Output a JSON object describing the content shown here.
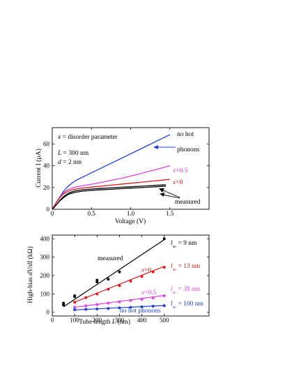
{
  "chart_data": [
    {
      "type": "line",
      "xlabel": "Voltage (V)",
      "ylabel": "Current I (µA)",
      "xlim": [
        0,
        2.0
      ],
      "ylim": [
        0,
        75
      ],
      "xticks": [
        0,
        0.5,
        1.0,
        1.5
      ],
      "xtick_labels": [
        "0",
        "0.5",
        "1.0",
        "1.5"
      ],
      "yticks": [
        0,
        20,
        40,
        60
      ],
      "ytick_labels": [
        "0",
        "20",
        "40",
        "60"
      ],
      "annotations": {
        "param_prefix": "x",
        "param_text": " = disorder parameter",
        "L_text": "L",
        "L_value": " = 300 nm",
        "d_text": "d",
        "d_value": " = 2 nm",
        "no_hot_line1": "no hot",
        "no_hot_line2": "phonons",
        "x05_var": "x",
        "x05_val": "=0.5",
        "x0_var": "x",
        "x0_val": "=0",
        "measured": "measured"
      },
      "colors": {
        "no_hot": "#1a3fd9",
        "x05": "#e040e6",
        "x0": "#e01818",
        "measured": "#000000"
      },
      "series": [
        {
          "key": "no_hot",
          "x": [
            0,
            0.05,
            0.1,
            0.15,
            0.2,
            0.25,
            0.3,
            0.4,
            0.5,
            0.6,
            0.7,
            0.8,
            0.9,
            1.0,
            1.1,
            1.2,
            1.3,
            1.4,
            1.5
          ],
          "y": [
            0,
            6,
            12,
            17,
            21,
            24,
            26.5,
            30,
            33.5,
            37,
            40.5,
            44,
            47.5,
            51,
            54.5,
            58,
            61.5,
            65,
            68.5
          ]
        },
        {
          "key": "x05",
          "x": [
            0,
            0.05,
            0.1,
            0.15,
            0.2,
            0.25,
            0.3,
            0.4,
            0.5,
            0.6,
            0.7,
            0.8,
            0.9,
            1.0,
            1.1,
            1.2,
            1.3,
            1.4,
            1.5
          ],
          "y": [
            0,
            6,
            11.5,
            15.5,
            18,
            19.5,
            20.5,
            21.8,
            23,
            24.3,
            25.8,
            27.3,
            28.8,
            30.5,
            32.3,
            34.2,
            36.1,
            38,
            40
          ]
        },
        {
          "key": "x0",
          "x": [
            0,
            0.05,
            0.1,
            0.15,
            0.2,
            0.25,
            0.3,
            0.4,
            0.5,
            0.6,
            0.7,
            0.8,
            0.9,
            1.0,
            1.1,
            1.2,
            1.3,
            1.4,
            1.5
          ],
          "y": [
            0,
            6,
            11,
            14.5,
            16.5,
            17.8,
            18.6,
            19.6,
            20.4,
            21.1,
            21.8,
            22.5,
            23.2,
            23.9,
            24.6,
            25.3,
            26,
            26.7,
            27.5
          ]
        },
        {
          "key": "measured_a",
          "x": [
            0,
            0.05,
            0.1,
            0.15,
            0.2,
            0.25,
            0.3,
            0.4,
            0.5,
            0.6,
            0.7,
            0.8,
            0.9,
            1.0,
            1.1,
            1.2,
            1.3,
            1.4,
            1.45
          ],
          "y": [
            0,
            4,
            8.5,
            12,
            14.5,
            16,
            17,
            18,
            18.6,
            19.1,
            19.5,
            19.9,
            20.3,
            20.7,
            21.1,
            21.5,
            21.9,
            22.3,
            22.5
          ]
        },
        {
          "key": "measured_b",
          "x": [
            0,
            0.05,
            0.1,
            0.15,
            0.2,
            0.25,
            0.3,
            0.4,
            0.5,
            0.6,
            0.7,
            0.8,
            0.9,
            1.0,
            1.1,
            1.2,
            1.3,
            1.4,
            1.45
          ],
          "y": [
            0,
            4,
            8,
            11,
            13.5,
            14.8,
            15.7,
            16.7,
            17.3,
            17.8,
            18.2,
            18.6,
            19,
            19.4,
            19.8,
            20.2,
            20.6,
            21,
            21.2
          ]
        }
      ]
    },
    {
      "type": "scatter",
      "xlabel_prefix": "Tube length ",
      "xlabel_var": "L",
      "xlabel_suffix": " (nm)",
      "ylabel_prefix": "High-bias ",
      "ylabel_var": "dV/dI",
      "ylabel_suffix": " (kΩ)",
      "xlim": [
        0,
        700
      ],
      "ylim": [
        -20,
        420
      ],
      "xticks": [
        0,
        100,
        200,
        300,
        400,
        500
      ],
      "xtick_labels": [
        "0",
        "100",
        "200",
        "300",
        "400",
        "500"
      ],
      "yticks": [
        0,
        100,
        200,
        300,
        400
      ],
      "ytick_labels": [
        "0",
        "100",
        "200",
        "300",
        "400"
      ],
      "annotations": {
        "measured": "measured",
        "x0_var": "x",
        "x0_val": "=0",
        "x05_var": "x",
        "x05_val": "=0.5",
        "no_hot": "no hot phonons",
        "lsc_var": "l",
        "lsc_sub": "sc",
        "lsc_9": " = 9 nm",
        "lsc_13": " = 13 nm",
        "lsc_39": " = 39 nm",
        "lsc_100": " = 100 nm"
      },
      "colors": {
        "measured": "#000000",
        "x0": "#e01818",
        "x05": "#e040e6",
        "no_hot": "#1a3fd9"
      },
      "series": [
        {
          "key": "measured",
          "x": [
            50,
            50,
            100,
            100,
            200,
            200,
            250,
            300,
            500
          ],
          "y": [
            40,
            50,
            85,
            90,
            165,
            175,
            180,
            220,
            400
          ],
          "fit": [
            [
              50,
              30
            ],
            [
              500,
              395
            ]
          ]
        },
        {
          "key": "x0",
          "x": [
            100,
            150,
            200,
            250,
            300,
            350,
            400,
            450,
            500
          ],
          "y": [
            55,
            80,
            100,
            125,
            145,
            170,
            195,
            220,
            245
          ],
          "fit": [
            [
              100,
              55
            ],
            [
              500,
              250
            ]
          ]
        },
        {
          "key": "x05",
          "x": [
            100,
            150,
            200,
            250,
            300,
            350,
            400,
            450,
            500
          ],
          "y": [
            28,
            35,
            42,
            50,
            57,
            64,
            71,
            78,
            90
          ],
          "fit": [
            [
              100,
              27
            ],
            [
              500,
              92
            ]
          ]
        },
        {
          "key": "no_hot",
          "x": [
            100,
            150,
            200,
            250,
            300,
            350,
            400,
            450,
            500
          ],
          "y": [
            14,
            16,
            18,
            21,
            24,
            27,
            30,
            33,
            36
          ],
          "fit": [
            [
              100,
              13
            ],
            [
              500,
              37
            ]
          ]
        }
      ]
    }
  ]
}
